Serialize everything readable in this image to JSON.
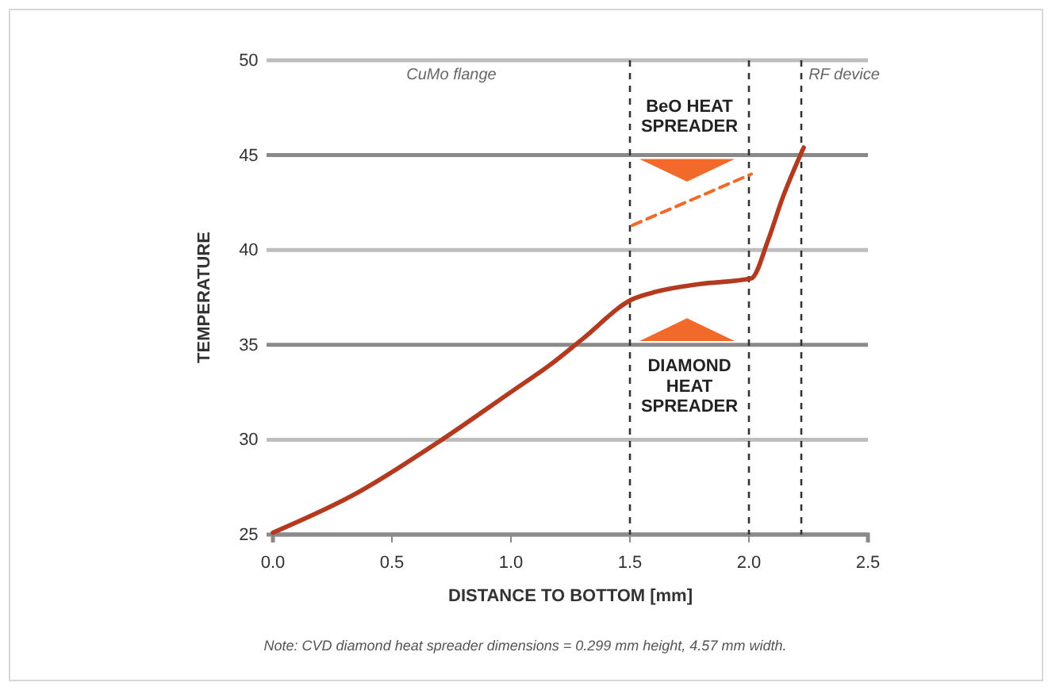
{
  "chart_data": {
    "type": "line",
    "xlabel": "DISTANCE TO BOTTOM [mm]",
    "ylabel": "TEMPERATURE",
    "xlim": [
      0,
      2.5
    ],
    "xticks": [
      {
        "value": 0,
        "label": "0.0"
      },
      0.5,
      {
        "value": 1,
        "label": "1.0"
      },
      1.5,
      {
        "value": 2,
        "label": "2.0"
      },
      2.5
    ],
    "ylim": [
      25,
      50
    ],
    "yticks": [
      25,
      30,
      35,
      40,
      45,
      50
    ],
    "grid": "y",
    "marker": "none",
    "series": [
      {
        "color": "#b33a1e",
        "line_style": "solid",
        "x": [
          0,
          0.34,
          0.71,
          1.01,
          1.16,
          1.3,
          1.51,
          1.61,
          1.79,
          2.01,
          2.08,
          2.14,
          2.23
        ],
        "values": [
          25.1,
          27.1,
          30,
          32.6,
          33.9,
          35.3,
          37.4,
          37.8,
          38.2,
          38.5,
          40.5,
          42.7,
          45.4
        ]
      },
      {
        "color": "#f26a2a",
        "line_style": "dashed",
        "x": [
          1.51,
          2.01
        ],
        "values": [
          41.3,
          44
        ]
      }
    ],
    "ref_lines": [
      {
        "axis": "x",
        "value": 1.5,
        "line_style": "dashed",
        "color": "#333333"
      },
      {
        "axis": "x",
        "value": 2,
        "line_style": "dashed",
        "color": "#333333"
      },
      {
        "axis": "x",
        "value": 2.22,
        "line_style": "dashed",
        "color": "#333333"
      }
    ],
    "annotations": [
      "CuMo flange",
      "RF device",
      "BeO HEAT\nSPREADER",
      "DIAMOND\nHEAT\nSPREADER",
      "Note: CVD diamond heat spreader dimensions = 0.299 mm height, 4.57 mm width."
    ]
  }
}
